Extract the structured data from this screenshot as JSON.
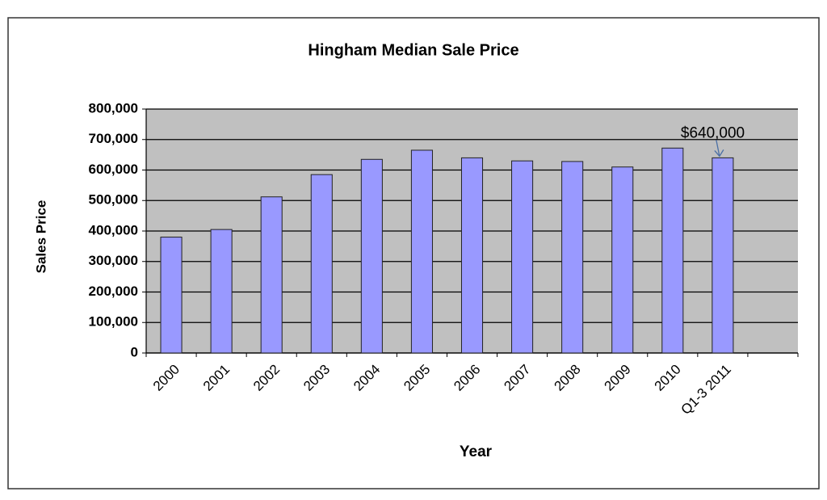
{
  "chart_data": {
    "type": "bar",
    "title": "Hingham Median Sale Price",
    "x_label": "Year",
    "y_label": "Sales Price",
    "categories": [
      "2000",
      "2001",
      "2002",
      "2003",
      "2004",
      "2005",
      "2006",
      "2007",
      "2008",
      "2009",
      "2010",
      "Q1-3 2011",
      null
    ],
    "values": [
      380000,
      405000,
      512000,
      585000,
      635000,
      665000,
      640000,
      630000,
      628000,
      610000,
      672000,
      640000,
      null
    ],
    "color": "#9999ff",
    "ylim": [
      0,
      800000
    ],
    "yticks": [
      0,
      {
        "value": 100000,
        "label": "100,000"
      },
      {
        "value": 200000,
        "label": "200,000"
      },
      {
        "value": 300000,
        "label": "300,000"
      },
      {
        "value": 400000,
        "label": "400,000"
      },
      {
        "value": 500000,
        "label": "500,000"
      },
      {
        "value": 600000,
        "label": "600,000"
      },
      {
        "value": 700000,
        "label": "700,000"
      },
      {
        "value": 800000,
        "label": "800,000"
      }
    ],
    "grid": true,
    "annotation": "$640,000"
  }
}
